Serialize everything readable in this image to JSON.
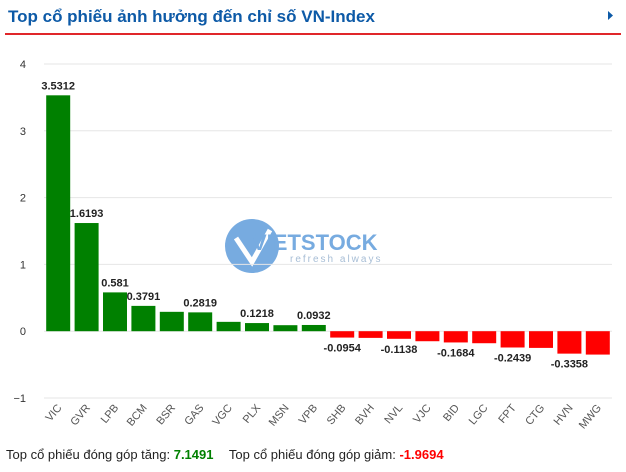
{
  "chart_data": {
    "type": "bar",
    "title": "Top cổ phiếu ảnh hưởng đến chỉ số VN-Index",
    "categories": [
      "VIC",
      "GVR",
      "LPB",
      "BCM",
      "BSR",
      "GAS",
      "VGC",
      "PLX",
      "MSN",
      "VPB",
      "SHB",
      "BVH",
      "NVL",
      "VJC",
      "BID",
      "LGC",
      "FPT",
      "CTG",
      "HVN",
      "MWG"
    ],
    "values": [
      3.5312,
      1.6193,
      0.581,
      0.3791,
      0.29,
      0.2819,
      0.14,
      0.1218,
      0.09,
      0.0932,
      -0.0954,
      -0.1,
      -0.1138,
      -0.15,
      -0.1684,
      -0.18,
      -0.2439,
      -0.25,
      -0.3358,
      -0.35
    ],
    "value_labels": [
      "3.5312",
      "1.6193",
      "0.581",
      "0.3791",
      null,
      "0.2819",
      null,
      "0.1218",
      null,
      "0.0932",
      "-0.0954",
      null,
      "-0.1138",
      null,
      "-0.1684",
      null,
      "-0.2439",
      null,
      "-0.3358",
      null
    ],
    "positive_color": "#008000",
    "negative_color": "#ff0000",
    "ylim": [
      -1,
      4
    ],
    "yticks": [
      {
        "value": -1,
        "label": "−1"
      },
      0,
      1,
      2,
      3,
      4
    ],
    "grid": true,
    "watermark": {
      "brand": "VIETSTOCK",
      "tagline": "refresh always"
    }
  },
  "footer": {
    "up_label": "Top cổ phiếu đóng góp tăng:",
    "up_value": 7.1491,
    "down_label": "Top cổ phiếu đóng góp giảm:",
    "down_value": -1.9694
  }
}
